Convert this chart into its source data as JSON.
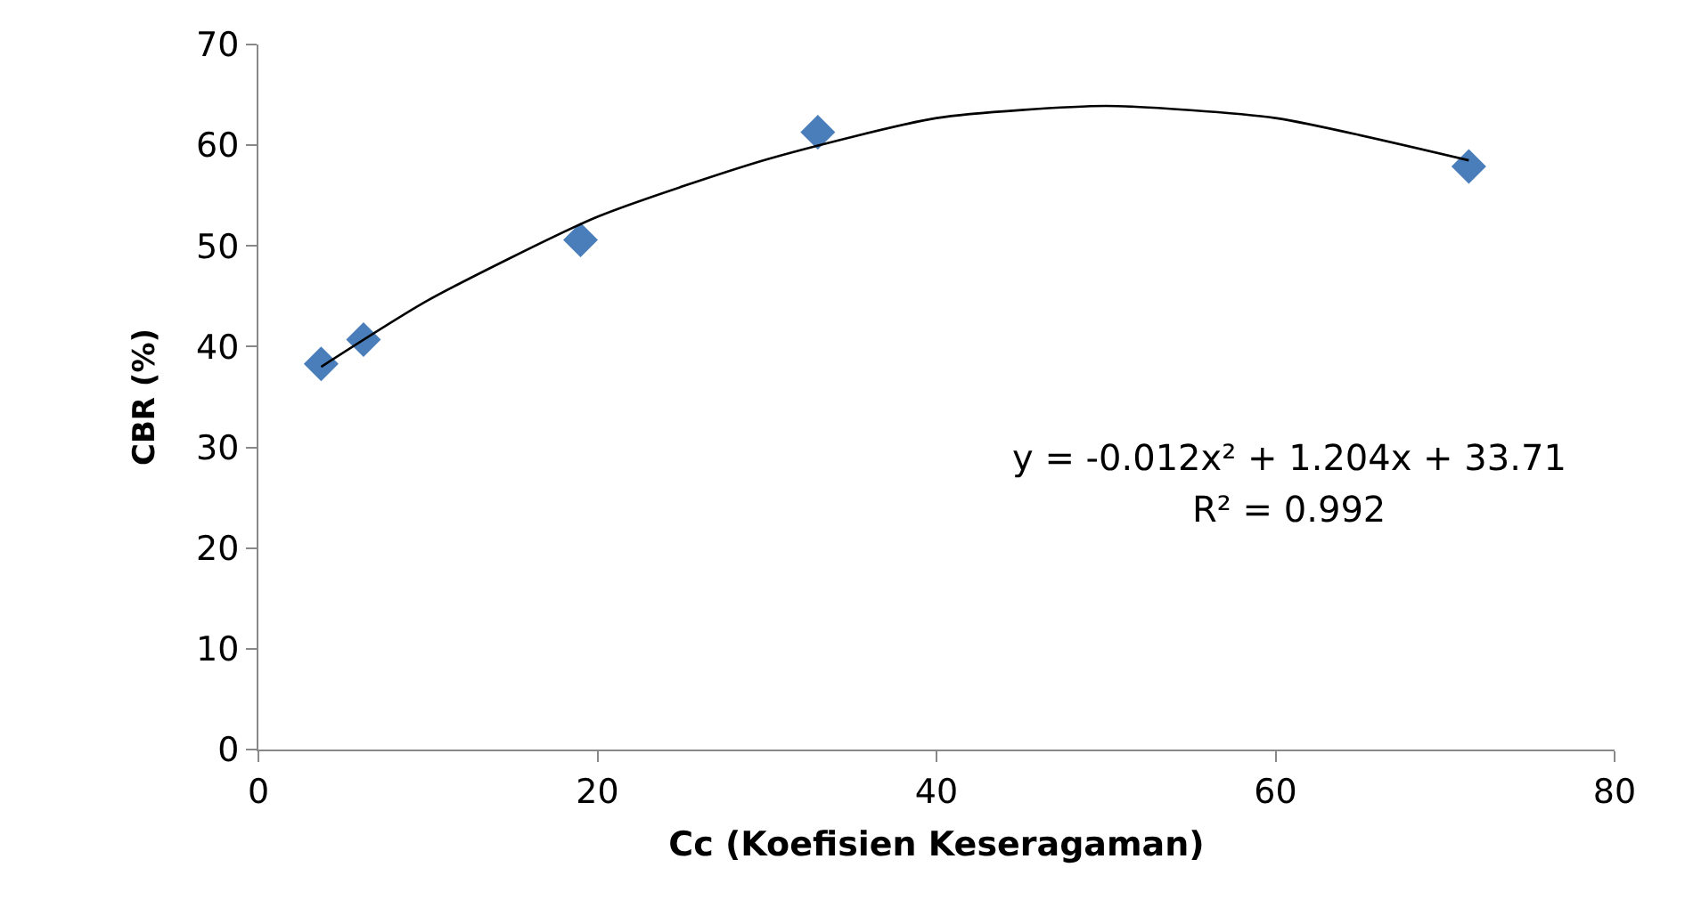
{
  "chart_data": {
    "type": "scatter",
    "xlabel": "Cc (Koefisien Keseragaman)",
    "ylabel": "CBR (%)",
    "marker": "diamond",
    "grid": false,
    "x": [
      3.7,
      6.2,
      19,
      33,
      71.4
    ],
    "series": [
      {
        "color": "#4a7ebb",
        "values": [
          38.3,
          40.7,
          50.6,
          61.3,
          57.9
        ]
      },
      {
        "type": "line",
        "color": "#000000",
        "marker": "none",
        "x": [
          3.7,
          10,
          20,
          30,
          40,
          50,
          60,
          71.4
        ],
        "values": [
          38.0,
          44.6,
          52.9,
          58.6,
          62.7,
          63.9,
          62.7,
          58.5
        ]
      }
    ],
    "xlim": [
      0,
      80
    ],
    "xticks": [
      0,
      20,
      40,
      60,
      80
    ],
    "ylim": [
      0,
      70
    ],
    "yticks": [
      0,
      10,
      20,
      30,
      40,
      50,
      60,
      70
    ],
    "annotations": [
      "y = -0.012x² + 1.204x + 33.71",
      "R² = 0.992"
    ]
  }
}
